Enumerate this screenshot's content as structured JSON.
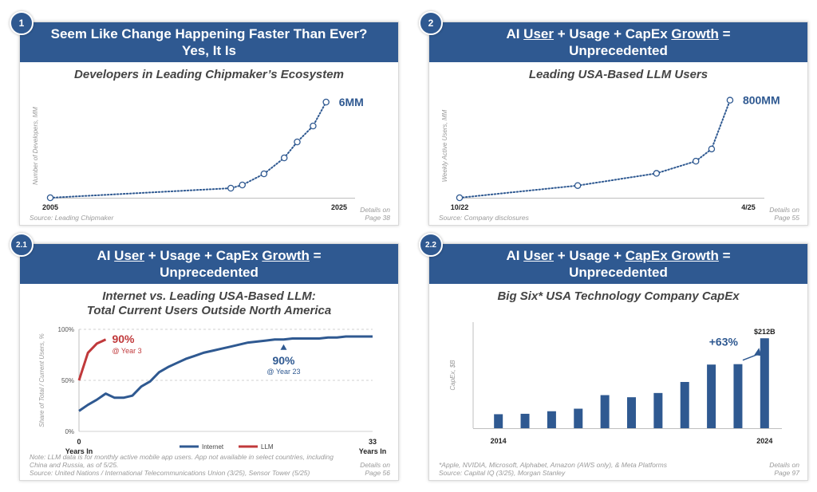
{
  "panels": [
    {
      "badge": "1",
      "header_line1": "Seem Like Change Happening Faster Than Ever?",
      "header_line2": "Yes, It Is",
      "subtitle": "Developers in Leading Chipmaker’s Ecosystem",
      "source": "Source: Leading Chipmaker",
      "details_line1": "Details on",
      "details_line2": "Page 38"
    },
    {
      "badge": "2",
      "header_line1_parts": [
        "AI ",
        "User",
        " + Usage + CapEx ",
        "Growth",
        " ="
      ],
      "header_line2": "Unprecedented",
      "subtitle": "Leading USA-Based LLM Users",
      "source": "Source: Company disclosures",
      "details_line1": "Details on",
      "details_line2": "Page 55"
    },
    {
      "badge": "2.1",
      "header_line1_parts": [
        "AI ",
        "User",
        " + Usage + CapEx ",
        "Growth",
        " ="
      ],
      "header_line2": "Unprecedented",
      "subtitle_line1": "Internet vs. Leading USA-Based LLM:",
      "subtitle_line2": "Total Current Users Outside North America",
      "note_line1": "Note: LLM data is for monthly active mobile app users. App not available in select countries, including",
      "note_line2": "China and Russia, as of 5/25.",
      "source": "Source: United Nations / International Telecommunications Union (3/25), Sensor Tower (5/25)",
      "details_line1": "Details on",
      "details_line2": "Page 56"
    },
    {
      "badge": "2.2",
      "header_line1_parts": [
        "AI ",
        "User",
        " + Usage + ",
        "CapEx Growth",
        " ="
      ],
      "header_line2": "Unprecedented",
      "subtitle": "Big Six* USA Technology Company CapEx",
      "note_line1": "*Apple, NVIDIA, Microsoft, Alphabet, Amazon (AWS only), & Meta Platforms",
      "source": "Source: Capital IQ (3/25), Morgan Stanley",
      "details_line1": "Details on",
      "details_line2": "Page 97"
    }
  ],
  "chart_data": [
    {
      "type": "line",
      "ylabel": "Number of Developers, MM",
      "x_tick_labels": [
        "2005",
        "2025"
      ],
      "x": [
        2005,
        2017.5,
        2018.3,
        2019.8,
        2021.2,
        2022.1,
        2023.2,
        2024.1
      ],
      "values": [
        0.0,
        0.6,
        0.8,
        1.5,
        2.5,
        3.5,
        4.5,
        6.0
      ],
      "xlim": [
        2005,
        2025
      ],
      "ylim": [
        0,
        6.5
      ],
      "end_label": "6MM",
      "style": "dotted",
      "color": "#2f5991"
    },
    {
      "type": "line",
      "ylabel": "Weekly Active Users, MM",
      "x_tick_labels": [
        "10/22",
        "4/25"
      ],
      "x": [
        0,
        9,
        15,
        18,
        19.2,
        20.6
      ],
      "values": [
        0,
        100,
        200,
        300,
        400,
        800
      ],
      "xlim": [
        0,
        22
      ],
      "ylim": [
        0,
        850
      ],
      "end_label": "800MM",
      "style": "dotted",
      "color": "#2f5991"
    },
    {
      "type": "line",
      "ylabel": "Share of Total / Current Users, %",
      "yticks": [
        "100%",
        "50%",
        "0%"
      ],
      "x_tick_labels": [
        "0",
        "33"
      ],
      "x_tick_sublabel": "Years In",
      "xlim": [
        0,
        33
      ],
      "ylim": [
        0,
        100
      ],
      "series": [
        {
          "name": "Internet",
          "color": "#2f5991",
          "x": [
            0,
            1,
            2,
            3,
            4,
            5,
            6,
            7,
            8,
            9,
            10,
            11,
            12,
            13,
            14,
            15,
            16,
            17,
            18,
            19,
            20,
            21,
            22,
            23,
            24,
            25,
            26,
            27,
            28,
            29,
            30,
            31,
            32,
            33
          ],
          "values": [
            20,
            26,
            31,
            37,
            33,
            33,
            35,
            44,
            49,
            58,
            63,
            67,
            71,
            74,
            77,
            79,
            81,
            83,
            85,
            87,
            88,
            89,
            90,
            90,
            91,
            91,
            91,
            91,
            92,
            92,
            93,
            93,
            93,
            93
          ]
        },
        {
          "name": "LLM",
          "color": "#c0393b",
          "x": [
            0,
            1,
            2,
            3
          ],
          "values": [
            50,
            77,
            86,
            90
          ]
        }
      ],
      "annotations": [
        {
          "big": "90%",
          "small": "@ Year 3",
          "series": "LLM"
        },
        {
          "big": "90%",
          "small": "@ Year 23",
          "series": "Internet"
        }
      ]
    },
    {
      "type": "bar",
      "ylabel": "CapEx, $B",
      "x_tick_labels": [
        "2014",
        "2024"
      ],
      "categories": [
        "2014",
        "2015",
        "2016",
        "2017",
        "2018",
        "2019",
        "2020",
        "2021",
        "2022",
        "2023",
        "2024"
      ],
      "values": [
        33,
        34,
        40,
        46,
        78,
        73,
        83,
        109,
        150,
        151,
        212
      ],
      "ylim": [
        0,
        250
      ],
      "end_label": "$212B",
      "growth_label": "+63%",
      "color": "#2f5991"
    }
  ]
}
